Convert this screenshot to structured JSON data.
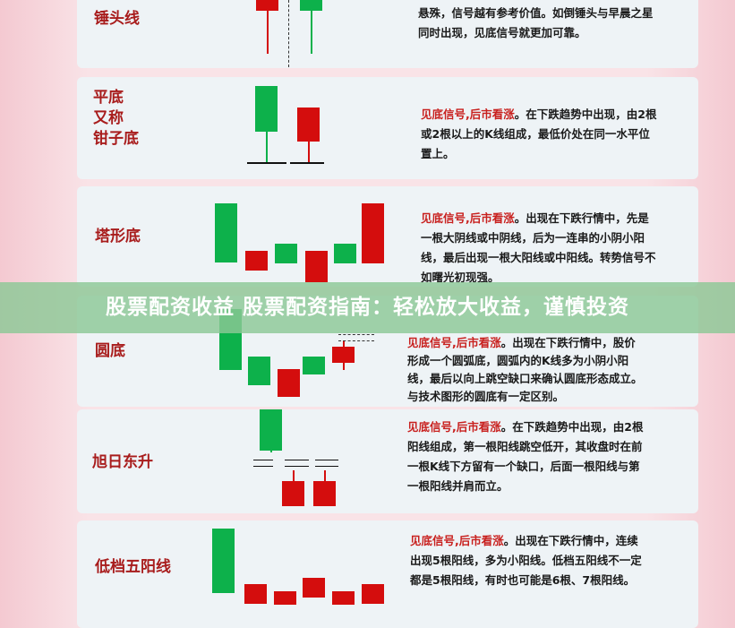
{
  "colors": {
    "up_candle": "#d40d0d",
    "down_candle": "#0db14b",
    "label": "#a81c1c",
    "signal": "#c8201e",
    "banner_bg": "#8cc896"
  },
  "banner": {
    "text": "股票配资收益 股票配资指南：轻松放大收益，谨慎投资"
  },
  "patterns": [
    {
      "name_lines": [
        "锤头线"
      ],
      "signal": "",
      "desc": "悬殊，信号越有参考价值。如倒锤头与早晨之星同时出现，见底信号就更加可靠。"
    },
    {
      "name_lines": [
        "平底",
        "又称",
        "钳子底"
      ],
      "signal": "见底信号,后市看涨",
      "desc": "。在下跌趋势中出现，由2根或2根以上的K线组成，最低价处在同一水平位置上。"
    },
    {
      "name_lines": [
        "塔形底"
      ],
      "signal": "见底信号,后市看涨",
      "desc": "。出现在下跌行情中，先是一根大阴线或中阴线，后为一连串的小阴小阳线，最后出现一根大阳线或中阳线。转势信号不如曙光初现强。"
    },
    {
      "name_lines": [
        "圆底"
      ],
      "signal": "见底信号,后市看涨",
      "desc": "。出现在下跌行情中，股价形成一个圆弧底，圆弧内的K线多为小阴小阳线，最后以向上跳空缺口来确认圆底形态成立。与技术图形的圆底有一定区别。"
    },
    {
      "name_lines": [
        "旭日东升"
      ],
      "signal": "见底信号,后市看涨",
      "desc": "。在下跌趋势中出现，由2根阳线组成，第一根阳线跳空低开，其收盘时在前一根K线下方留有一个缺口，后面一根阳线与第一根阳线并肩而立。"
    },
    {
      "name_lines": [
        "低档五阳线"
      ],
      "signal": "见底信号,后市看涨",
      "desc": "。出现在下跌行情中，连续出现5根阳线，多为小阳线。低档五阳线不一定都是5根阳线，有时也可能是6根、7根阳线。"
    }
  ]
}
